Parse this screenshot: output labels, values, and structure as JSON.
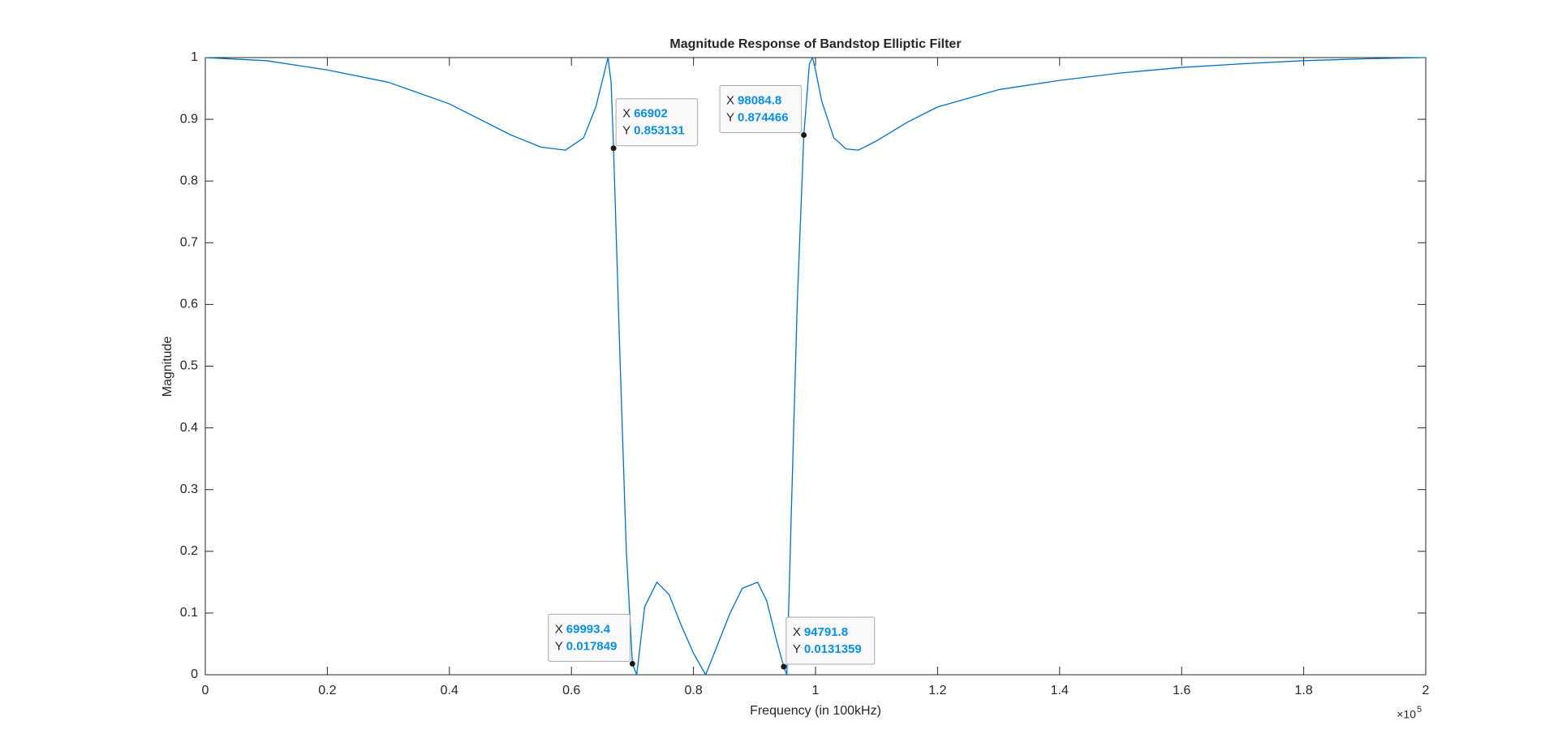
{
  "chart_data": {
    "type": "line",
    "title": "Magnitude Response of Bandstop Elliptic Filter",
    "x_label": "Frequency (in 100kHz)",
    "y_label": "Magnitude",
    "x_multiplier": {
      "base": "×10",
      "exponent": "5"
    },
    "xlim": [
      0,
      200000
    ],
    "xticks": [
      0,
      {
        "value": 20000,
        "label": "0.2"
      },
      {
        "value": 40000,
        "label": "0.4"
      },
      {
        "value": 60000,
        "label": "0.6"
      },
      {
        "value": 80000,
        "label": "0.8"
      },
      {
        "value": 100000,
        "label": "1"
      },
      {
        "value": 120000,
        "label": "1.2"
      },
      {
        "value": 140000,
        "label": "1.4"
      },
      {
        "value": 160000,
        "label": "1.6"
      },
      {
        "value": 180000,
        "label": "1.8"
      },
      {
        "value": 200000,
        "label": "2"
      }
    ],
    "ylim": [
      0,
      1
    ],
    "yticks": [
      0,
      0.1,
      0.2,
      0.3,
      0.4,
      0.5,
      0.6,
      0.7,
      0.8,
      0.9,
      1
    ],
    "grid": false,
    "x": [
      0,
      10000,
      20000,
      30000,
      40000,
      50000,
      55000,
      59000,
      62000,
      64000,
      65000,
      66000,
      66500,
      66902,
      68000,
      69000,
      69993.4,
      70700,
      72000,
      74000,
      76000,
      78000,
      80000,
      82000,
      84000,
      86000,
      88000,
      90500,
      92000,
      93500,
      94791.8,
      95300,
      96000,
      97000,
      98084.8,
      99000,
      99500,
      100000,
      101000,
      103000,
      105000,
      107000,
      110000,
      115000,
      120000,
      130000,
      140000,
      150000,
      160000,
      170000,
      180000,
      190000,
      200000
    ],
    "series": [
      {
        "color": "#0072bd",
        "values": [
          1,
          0.995,
          0.98,
          0.96,
          0.925,
          0.875,
          0.855,
          0.85,
          0.87,
          0.92,
          0.96,
          1,
          0.96,
          0.853131,
          0.5,
          0.2,
          0.017849,
          0,
          0.11,
          0.15,
          0.13,
          0.08,
          0.035,
          0,
          0.05,
          0.1,
          0.14,
          0.15,
          0.12,
          0.06,
          0.0131359,
          0,
          0.25,
          0.6,
          0.874466,
          0.99,
          1,
          0.98,
          0.93,
          0.87,
          0.852,
          0.85,
          0.865,
          0.895,
          0.92,
          0.948,
          0.963,
          0.975,
          0.984,
          0.99,
          0.995,
          0.998,
          1
        ]
      }
    ],
    "datatip_x_label": "X",
    "datatip_y_label": "Y",
    "datatips": [
      {
        "x": 66902,
        "y": 0.853131
      },
      {
        "x": 98084.8,
        "y": 0.874466
      },
      {
        "x": 69993.4,
        "y": 0.017849
      },
      {
        "x": 94791.8,
        "y": 0.0131359
      }
    ]
  }
}
